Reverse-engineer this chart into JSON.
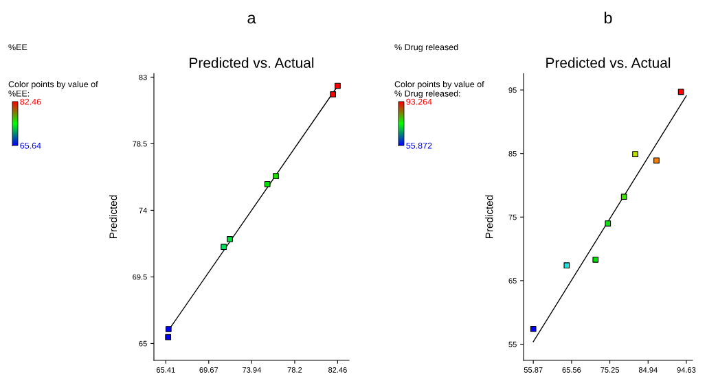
{
  "chart_data": [
    {
      "type": "scatter",
      "title": "a",
      "subtitle": "Predicted vs. Actual",
      "ylabel": "Predicted",
      "annotations": [
        "%EE",
        "Color points by value of\n%EE:"
      ],
      "xlim": [
        64.23,
        83.59
      ],
      "xticks": [
        65.41,
        69.67,
        73.94,
        78.2,
        82.46
      ],
      "ylim": [
        63.86,
        83.25
      ],
      "yticks": [
        65,
        69.5,
        74,
        78.5,
        83
      ],
      "clim": [
        65.64,
        82.46
      ],
      "cticks": [
        65.64,
        82.46
      ],
      "grid": false,
      "series": [
        {
          "marker": "square",
          "x": [
            65.64,
            65.68,
            71.16,
            71.76,
            75.49,
            76.33,
            82.0,
            82.46
          ],
          "values": [
            65.43,
            65.97,
            71.53,
            72.05,
            75.77,
            76.31,
            81.84,
            82.41
          ],
          "colors": [
            "#0000ff",
            "#0000ff",
            "#00e060",
            "#00e040",
            "#00e000",
            "#20e000",
            "#ff0000",
            "#ff0000"
          ]
        },
        {
          "type": "line",
          "color": "#000000",
          "x": [
            65.64,
            82.46
          ],
          "values": [
            65.85,
            82.4
          ]
        }
      ]
    },
    {
      "type": "scatter",
      "title": "b",
      "subtitle": "Predicted vs. Actual",
      "ylabel": "Predicted",
      "annotations": [
        "% Drug released",
        "Color points by value of\n% Drug released:"
      ],
      "xlim": [
        53.4,
        96.2
      ],
      "xticks": [
        55.87,
        65.56,
        75.25,
        84.94,
        94.63
      ],
      "ylim": [
        52.46,
        97.6
      ],
      "yticks": [
        55,
        65,
        75,
        85,
        95
      ],
      "clim": [
        55.872,
        93.264
      ],
      "cticks": [
        55.872,
        93.264
      ],
      "grid": false,
      "series": [
        {
          "marker": "square",
          "x": [
            55.872,
            64.33,
            71.63,
            74.76,
            78.83,
            81.68,
            87.06,
            93.264
          ],
          "values": [
            57.4,
            67.4,
            68.3,
            74.0,
            78.2,
            84.9,
            83.9,
            94.7
          ],
          "colors": [
            "#0000ff",
            "#20e0e0",
            "#00e000",
            "#10e010",
            "#40e000",
            "#c0e000",
            "#ff8000",
            "#ff0000"
          ]
        },
        {
          "type": "line",
          "color": "#000000",
          "x": [
            55.87,
            94.63
          ],
          "values": [
            55.4,
            94.1
          ]
        }
      ]
    }
  ]
}
